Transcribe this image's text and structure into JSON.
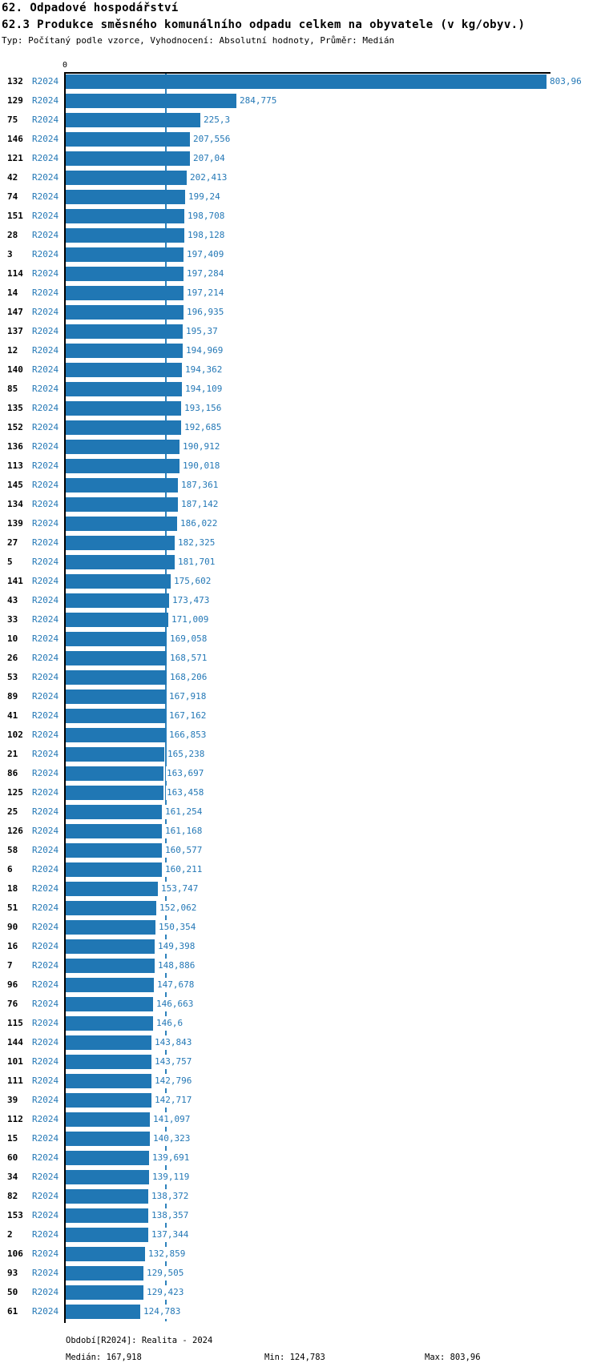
{
  "header": {
    "title_line1": "62. Odpadové hospodářství",
    "title_line2": "62.3 Produkce směsného komunálního odpadu celkem na obyvatele (v kg/obyv.)",
    "subtitle": "Typ: Počítaný podle vzorce, Vyhodnocení: Absolutní hodnoty, Průměr: Medián"
  },
  "chart_data": {
    "type": "bar",
    "orientation": "horizontal",
    "axis_zero_label": "0",
    "xlim": [
      0,
      810
    ],
    "max_value": 803.96,
    "median_value": 167.918,
    "period_label": "R2024",
    "legend_position": "none",
    "grid": false,
    "colors": {
      "bar": "#2077B4",
      "blue_text": "#2478B6",
      "median_line": "#2E82BC",
      "axis": "#000000"
    },
    "rows": [
      {
        "id": "132",
        "period": "R2024",
        "value": 803.96,
        "label": "803,96"
      },
      {
        "id": "129",
        "period": "R2024",
        "value": 284.775,
        "label": "284,775"
      },
      {
        "id": "75",
        "period": "R2024",
        "value": 225.3,
        "label": "225,3"
      },
      {
        "id": "146",
        "period": "R2024",
        "value": 207.556,
        "label": "207,556"
      },
      {
        "id": "121",
        "period": "R2024",
        "value": 207.04,
        "label": "207,04"
      },
      {
        "id": "42",
        "period": "R2024",
        "value": 202.413,
        "label": "202,413"
      },
      {
        "id": "74",
        "period": "R2024",
        "value": 199.24,
        "label": "199,24"
      },
      {
        "id": "151",
        "period": "R2024",
        "value": 198.708,
        "label": "198,708"
      },
      {
        "id": "28",
        "period": "R2024",
        "value": 198.128,
        "label": "198,128"
      },
      {
        "id": "3",
        "period": "R2024",
        "value": 197.409,
        "label": "197,409"
      },
      {
        "id": "114",
        "period": "R2024",
        "value": 197.284,
        "label": "197,284"
      },
      {
        "id": "14",
        "period": "R2024",
        "value": 197.214,
        "label": "197,214"
      },
      {
        "id": "147",
        "period": "R2024",
        "value": 196.935,
        "label": "196,935"
      },
      {
        "id": "137",
        "period": "R2024",
        "value": 195.37,
        "label": "195,37"
      },
      {
        "id": "12",
        "period": "R2024",
        "value": 194.969,
        "label": "194,969"
      },
      {
        "id": "140",
        "period": "R2024",
        "value": 194.362,
        "label": "194,362"
      },
      {
        "id": "85",
        "period": "R2024",
        "value": 194.109,
        "label": "194,109"
      },
      {
        "id": "135",
        "period": "R2024",
        "value": 193.156,
        "label": "193,156"
      },
      {
        "id": "152",
        "period": "R2024",
        "value": 192.685,
        "label": "192,685"
      },
      {
        "id": "136",
        "period": "R2024",
        "value": 190.912,
        "label": "190,912"
      },
      {
        "id": "113",
        "period": "R2024",
        "value": 190.018,
        "label": "190,018"
      },
      {
        "id": "145",
        "period": "R2024",
        "value": 187.361,
        "label": "187,361"
      },
      {
        "id": "134",
        "period": "R2024",
        "value": 187.142,
        "label": "187,142"
      },
      {
        "id": "139",
        "period": "R2024",
        "value": 186.022,
        "label": "186,022"
      },
      {
        "id": "27",
        "period": "R2024",
        "value": 182.325,
        "label": "182,325"
      },
      {
        "id": "5",
        "period": "R2024",
        "value": 181.701,
        "label": "181,701"
      },
      {
        "id": "141",
        "period": "R2024",
        "value": 175.602,
        "label": "175,602"
      },
      {
        "id": "43",
        "period": "R2024",
        "value": 173.473,
        "label": "173,473"
      },
      {
        "id": "33",
        "period": "R2024",
        "value": 171.009,
        "label": "171,009"
      },
      {
        "id": "10",
        "period": "R2024",
        "value": 169.058,
        "label": "169,058"
      },
      {
        "id": "26",
        "period": "R2024",
        "value": 168.571,
        "label": "168,571"
      },
      {
        "id": "53",
        "period": "R2024",
        "value": 168.206,
        "label": "168,206"
      },
      {
        "id": "89",
        "period": "R2024",
        "value": 167.918,
        "label": "167,918"
      },
      {
        "id": "41",
        "period": "R2024",
        "value": 167.162,
        "label": "167,162"
      },
      {
        "id": "102",
        "period": "R2024",
        "value": 166.853,
        "label": "166,853"
      },
      {
        "id": "21",
        "period": "R2024",
        "value": 165.238,
        "label": "165,238"
      },
      {
        "id": "86",
        "period": "R2024",
        "value": 163.697,
        "label": "163,697"
      },
      {
        "id": "125",
        "period": "R2024",
        "value": 163.458,
        "label": "163,458"
      },
      {
        "id": "25",
        "period": "R2024",
        "value": 161.254,
        "label": "161,254"
      },
      {
        "id": "126",
        "period": "R2024",
        "value": 161.168,
        "label": "161,168"
      },
      {
        "id": "58",
        "period": "R2024",
        "value": 160.577,
        "label": "160,577"
      },
      {
        "id": "6",
        "period": "R2024",
        "value": 160.211,
        "label": "160,211"
      },
      {
        "id": "18",
        "period": "R2024",
        "value": 153.747,
        "label": "153,747"
      },
      {
        "id": "51",
        "period": "R2024",
        "value": 152.062,
        "label": "152,062"
      },
      {
        "id": "90",
        "period": "R2024",
        "value": 150.354,
        "label": "150,354"
      },
      {
        "id": "16",
        "period": "R2024",
        "value": 149.398,
        "label": "149,398"
      },
      {
        "id": "7",
        "period": "R2024",
        "value": 148.886,
        "label": "148,886"
      },
      {
        "id": "96",
        "period": "R2024",
        "value": 147.678,
        "label": "147,678"
      },
      {
        "id": "76",
        "period": "R2024",
        "value": 146.663,
        "label": "146,663"
      },
      {
        "id": "115",
        "period": "R2024",
        "value": 146.6,
        "label": "146,6"
      },
      {
        "id": "144",
        "period": "R2024",
        "value": 143.843,
        "label": "143,843"
      },
      {
        "id": "101",
        "period": "R2024",
        "value": 143.757,
        "label": "143,757"
      },
      {
        "id": "111",
        "period": "R2024",
        "value": 142.796,
        "label": "142,796"
      },
      {
        "id": "39",
        "period": "R2024",
        "value": 142.717,
        "label": "142,717"
      },
      {
        "id": "112",
        "period": "R2024",
        "value": 141.097,
        "label": "141,097"
      },
      {
        "id": "15",
        "period": "R2024",
        "value": 140.323,
        "label": "140,323"
      },
      {
        "id": "60",
        "period": "R2024",
        "value": 139.691,
        "label": "139,691"
      },
      {
        "id": "34",
        "period": "R2024",
        "value": 139.119,
        "label": "139,119"
      },
      {
        "id": "82",
        "period": "R2024",
        "value": 138.372,
        "label": "138,372"
      },
      {
        "id": "153",
        "period": "R2024",
        "value": 138.357,
        "label": "138,357"
      },
      {
        "id": "2",
        "period": "R2024",
        "value": 137.344,
        "label": "137,344"
      },
      {
        "id": "106",
        "period": "R2024",
        "value": 132.859,
        "label": "132,859"
      },
      {
        "id": "93",
        "period": "R2024",
        "value": 129.505,
        "label": "129,505"
      },
      {
        "id": "50",
        "period": "R2024",
        "value": 129.423,
        "label": "129,423"
      },
      {
        "id": "61",
        "period": "R2024",
        "value": 124.783,
        "label": "124,783"
      }
    ]
  },
  "footer": {
    "period_line": "Období[R2024]: Realita - 2024",
    "median_label": "Medián: 167,918",
    "min_label": "Min: 124,783",
    "max_label": "Max: 803,96"
  }
}
